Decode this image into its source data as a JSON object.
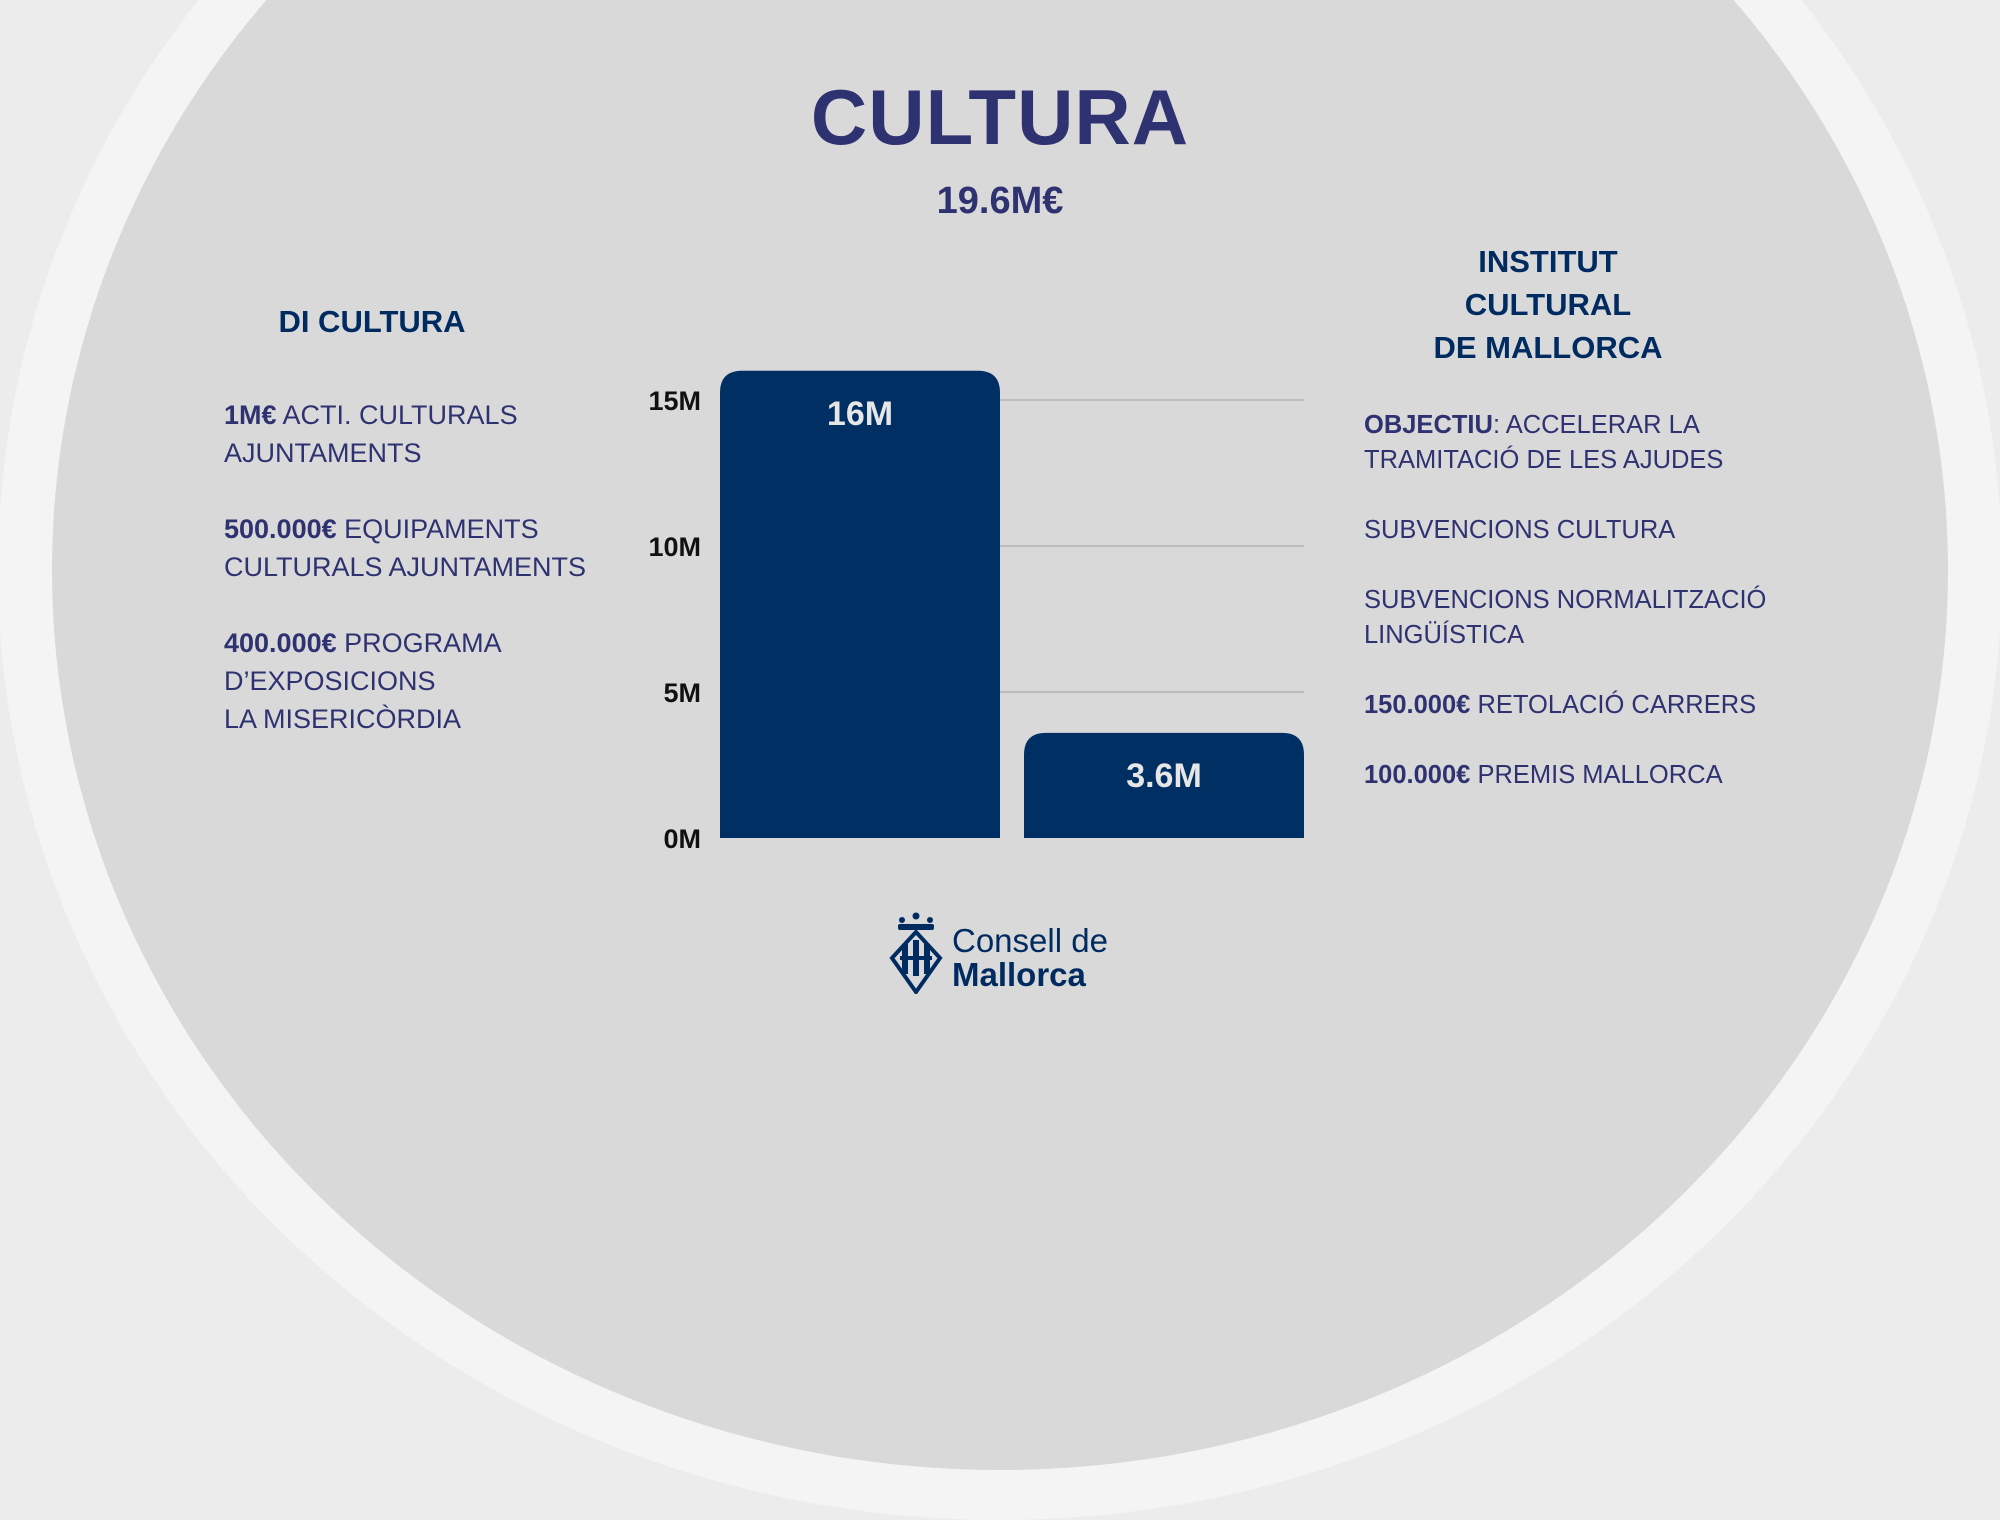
{
  "title": "CULTURA",
  "total": "19.6M€",
  "left_column": {
    "heading": "DI CULTURA",
    "items": [
      {
        "amount": "1M€",
        "lines": [
          "ACTI. CULTURALS",
          "AJUNTAMENTS"
        ]
      },
      {
        "amount": "500.000€",
        "lines": [
          "EQUIPAMENTS",
          "CULTURALS AJUNTAMENTS"
        ]
      },
      {
        "amount": "400.000€",
        "lines": [
          "PROGRAMA",
          "D’EXPOSICIONS",
          "LA MISERICÒRDIA"
        ]
      }
    ]
  },
  "right_column": {
    "heading_lines": [
      "INSTITUT",
      "CULTURAL",
      "DE MALLORCA"
    ],
    "items": [
      {
        "amount": "OBJECTIU",
        "sep": ":",
        "lines": [
          "ACCELERAR LA",
          "TRAMITACIÓ DE LES AJUDES"
        ]
      },
      {
        "amount": "",
        "sep": "",
        "lines": [
          "SUBVENCIONS CULTURA"
        ]
      },
      {
        "amount": "",
        "sep": "",
        "lines": [
          "SUBVENCIONS NORMALITZACIÓ",
          "LINGÜÍSTICA"
        ]
      },
      {
        "amount": "150.000€",
        "sep": "",
        "lines": [
          "RETOLACIÓ CARRERS"
        ]
      },
      {
        "amount": "100.000€",
        "sep": "",
        "lines": [
          "PREMIS MALLORCA"
        ]
      }
    ]
  },
  "chart_data": {
    "type": "bar",
    "categories": [
      "",
      ""
    ],
    "values": [
      16,
      3.6
    ],
    "data_labels": [
      "16M",
      "3.6M"
    ],
    "y_ticks": [
      {
        "value": 0,
        "label": "0M"
      },
      {
        "value": 5,
        "label": "5M"
      },
      {
        "value": 10,
        "label": "10M"
      },
      {
        "value": 15,
        "label": "15M"
      }
    ],
    "ylim": [
      0,
      15
    ],
    "grid": true,
    "legend": "none",
    "title": "",
    "xlabel": "",
    "ylabel": ""
  },
  "logo": {
    "line1": "Consell de",
    "line2": "Mallorca"
  },
  "colors": {
    "bar": "#002f63",
    "heading": "#2e3271",
    "column_heading": "#002b61",
    "background_disc": "#d9d9d9",
    "background_ring": "#f4f4f4",
    "gridline": "#b3b3b3"
  }
}
